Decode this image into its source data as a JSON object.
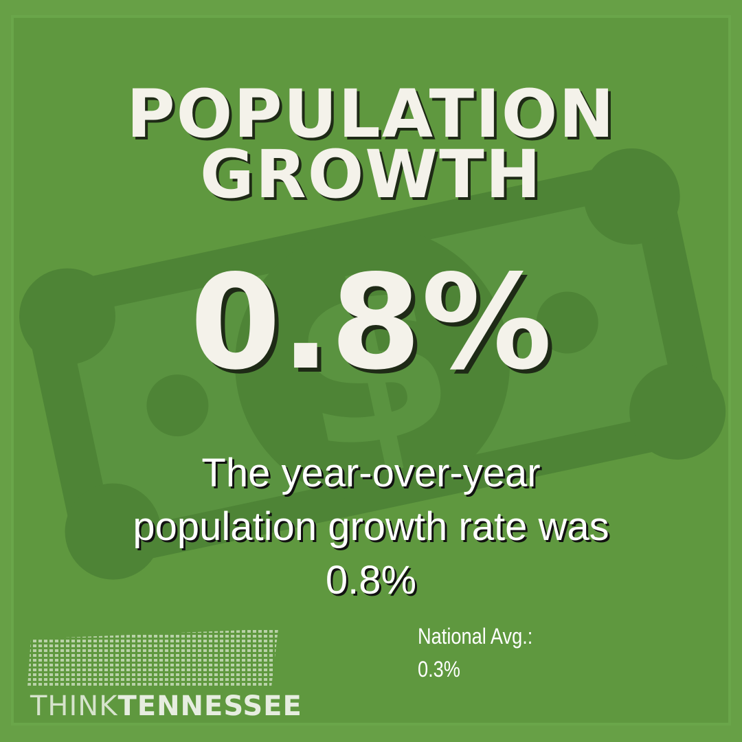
{
  "title": {
    "lines": [
      "POPULATION",
      "GROWTH"
    ]
  },
  "stat": "0.8%",
  "description": {
    "lines": [
      "The year-over-year",
      "population growth rate was",
      "0.8%"
    ]
  },
  "national": {
    "label": "National Avg.:",
    "value": "0.3%"
  },
  "logo": {
    "first": "THINK",
    "second": "TENNESSEE"
  }
}
